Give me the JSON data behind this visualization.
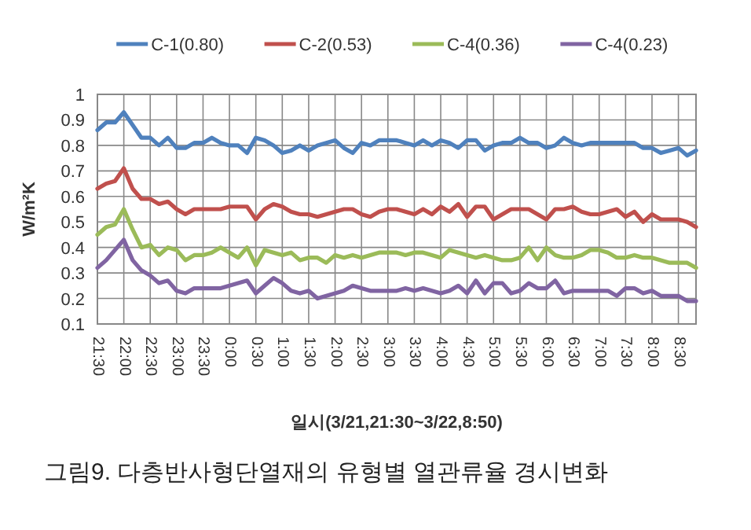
{
  "chart_data": {
    "type": "line",
    "xlabel": "일시(3/21,21:30~3/22,8:50)",
    "ylabel": "W/m²K",
    "annotations": [
      "그림9. 다층반사형단열재의 유형별 열관류율 경시변화"
    ],
    "categories": [
      "21:30",
      null,
      null,
      "22:00",
      null,
      null,
      "22:30",
      null,
      null,
      "23:00",
      null,
      null,
      "23:30",
      null,
      null,
      "0:00",
      null,
      null,
      "0:30",
      null,
      null,
      "1:00",
      null,
      null,
      "1:30",
      null,
      null,
      "2:00",
      null,
      null,
      "2:30",
      null,
      null,
      "3:00",
      null,
      null,
      "3:30",
      null,
      null,
      "4:00",
      null,
      null,
      "4:30",
      null,
      null,
      "5:00",
      null,
      null,
      "5:30",
      null,
      null,
      "6:00",
      null,
      null,
      "6:30",
      null,
      null,
      "7:00",
      null,
      null,
      "7:30",
      null,
      null,
      "8:00",
      null,
      null,
      "8:30",
      null,
      null
    ],
    "series": [
      {
        "name": "C-1(0.80)",
        "color": "#4f81bd",
        "values": [
          0.86,
          0.89,
          0.89,
          0.93,
          0.88,
          0.83,
          0.83,
          0.8,
          0.83,
          0.79,
          0.79,
          0.81,
          0.81,
          0.83,
          0.81,
          0.8,
          0.8,
          0.77,
          0.83,
          0.82,
          0.8,
          0.77,
          0.78,
          0.8,
          0.78,
          0.8,
          0.81,
          0.82,
          0.79,
          0.77,
          0.81,
          0.8,
          0.82,
          0.82,
          0.82,
          0.81,
          0.8,
          0.82,
          0.8,
          0.82,
          0.81,
          0.79,
          0.82,
          0.82,
          0.78,
          0.8,
          0.81,
          0.81,
          0.83,
          0.81,
          0.81,
          0.79,
          0.8,
          0.83,
          0.81,
          0.8,
          0.81,
          0.81,
          0.81,
          0.81,
          0.81,
          0.81,
          0.79,
          0.79,
          0.77,
          0.78,
          0.79,
          0.76,
          0.78
        ]
      },
      {
        "name": "C-2(0.53)",
        "color": "#c0504d",
        "values": [
          0.63,
          0.65,
          0.66,
          0.71,
          0.63,
          0.59,
          0.59,
          0.57,
          0.58,
          0.55,
          0.53,
          0.55,
          0.55,
          0.55,
          0.55,
          0.56,
          0.56,
          0.56,
          0.51,
          0.55,
          0.57,
          0.56,
          0.54,
          0.53,
          0.53,
          0.52,
          0.53,
          0.54,
          0.55,
          0.55,
          0.53,
          0.52,
          0.54,
          0.55,
          0.55,
          0.54,
          0.53,
          0.55,
          0.53,
          0.56,
          0.54,
          0.57,
          0.52,
          0.56,
          0.56,
          0.51,
          0.53,
          0.55,
          0.55,
          0.55,
          0.53,
          0.51,
          0.55,
          0.55,
          0.56,
          0.54,
          0.53,
          0.53,
          0.54,
          0.55,
          0.52,
          0.54,
          0.5,
          0.53,
          0.51,
          0.51,
          0.51,
          0.5,
          0.48
        ]
      },
      {
        "name": "C-4(0.36)",
        "color": "#9bbb59",
        "values": [
          0.45,
          0.48,
          0.49,
          0.55,
          0.47,
          0.4,
          0.41,
          0.37,
          0.4,
          0.39,
          0.35,
          0.37,
          0.37,
          0.38,
          0.4,
          0.38,
          0.36,
          0.4,
          0.33,
          0.39,
          0.38,
          0.37,
          0.38,
          0.35,
          0.36,
          0.36,
          0.34,
          0.37,
          0.36,
          0.37,
          0.36,
          0.37,
          0.38,
          0.38,
          0.38,
          0.37,
          0.38,
          0.38,
          0.37,
          0.36,
          0.39,
          0.38,
          0.37,
          0.36,
          0.37,
          0.36,
          0.35,
          0.35,
          0.36,
          0.4,
          0.35,
          0.4,
          0.37,
          0.36,
          0.36,
          0.37,
          0.39,
          0.39,
          0.38,
          0.36,
          0.36,
          0.37,
          0.36,
          0.36,
          0.35,
          0.34,
          0.34,
          0.34,
          0.32
        ]
      },
      {
        "name": "C-4(0.23)",
        "color": "#8064a2",
        "values": [
          0.32,
          0.35,
          0.39,
          0.43,
          0.35,
          0.31,
          0.29,
          0.26,
          0.27,
          0.23,
          0.22,
          0.24,
          0.24,
          0.24,
          0.24,
          0.25,
          0.26,
          0.27,
          0.22,
          0.25,
          0.28,
          0.26,
          0.23,
          0.22,
          0.23,
          0.2,
          0.21,
          0.22,
          0.23,
          0.25,
          0.24,
          0.23,
          0.23,
          0.23,
          0.23,
          0.24,
          0.23,
          0.24,
          0.23,
          0.22,
          0.23,
          0.25,
          0.22,
          0.27,
          0.22,
          0.26,
          0.26,
          0.22,
          0.23,
          0.26,
          0.24,
          0.24,
          0.27,
          0.22,
          0.23,
          0.23,
          0.23,
          0.23,
          0.23,
          0.21,
          0.24,
          0.24,
          0.22,
          0.23,
          0.21,
          0.21,
          0.21,
          0.19,
          0.19
        ]
      }
    ],
    "ylim": [
      0.1,
      1
    ],
    "yticks": [
      0.1,
      0.2,
      0.3,
      0.4,
      0.5,
      0.6,
      0.7,
      0.8,
      0.9,
      1
    ],
    "grid": true,
    "legend": "top"
  }
}
